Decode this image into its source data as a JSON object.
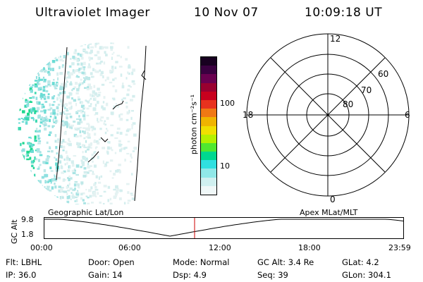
{
  "header": {
    "title": "Ultraviolet Imager",
    "date": "10 Nov 07",
    "time": "10:09:18 UT"
  },
  "colorbar": {
    "unit_label": "photon cm⁻²s⁻¹",
    "ticks": [
      "100",
      "10"
    ],
    "colors": [
      "#180020",
      "#3a0040",
      "#6a0050",
      "#9a0030",
      "#c8001e",
      "#e8321e",
      "#f07814",
      "#f0b400",
      "#f0e000",
      "#b4f000",
      "#50e830",
      "#00d890",
      "#30e0e0",
      "#90e8e8",
      "#d0f0f0",
      "#f0f8f8"
    ]
  },
  "polar": {
    "labels": [
      "12",
      "18",
      "6",
      "0",
      "60",
      "70",
      "80"
    ]
  },
  "timeline": {
    "geo_label": "Geographic Lat/Lon",
    "apex_label": "Apex  MLat/MLT",
    "yaxis_label": "GC Alt",
    "y_ticks": [
      "9.8",
      "1.8"
    ],
    "x_ticks": [
      "00:00",
      "06:00",
      "12:00",
      "18:00",
      "23:59"
    ],
    "marker_color": "#cc0000"
  },
  "info": {
    "rows": [
      [
        "Flt: LBHL",
        "Door: Open",
        "Mode: Normal",
        "GC Alt: 3.4 Re",
        "GLat:   4.2"
      ],
      [
        "IP: 36.0",
        "Gain: 14",
        "Dsp:     4.9",
        "Seq: 39",
        "GLon: 304.1"
      ]
    ]
  }
}
